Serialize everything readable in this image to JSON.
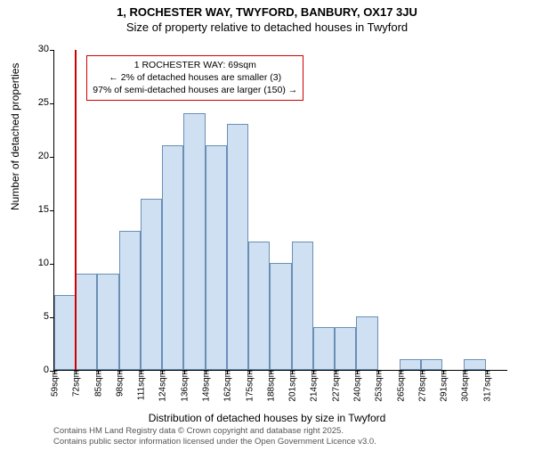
{
  "title_line1": "1, ROCHESTER WAY, TWYFORD, BANBURY, OX17 3JU",
  "title_line2": "Size of property relative to detached houses in Twyford",
  "ylabel": "Number of detached properties",
  "xlabel": "Distribution of detached houses by size in Twyford",
  "chart": {
    "type": "histogram",
    "ylim": [
      0,
      30
    ],
    "ytick_step": 5,
    "background_color": "#ffffff",
    "bar_fill": "#cfe0f3",
    "bar_border": "#6a8fb5",
    "ref_line_color": "#d00000",
    "info_border_color": "#d00000",
    "categories": [
      "59sqm",
      "72sqm",
      "85sqm",
      "98sqm",
      "111sqm",
      "124sqm",
      "136sqm",
      "149sqm",
      "162sqm",
      "175sqm",
      "188sqm",
      "201sqm",
      "214sqm",
      "227sqm",
      "240sqm",
      "253sqm",
      "265sqm",
      "278sqm",
      "291sqm",
      "304sqm",
      "317sqm"
    ],
    "values": [
      7,
      9,
      9,
      13,
      16,
      21,
      24,
      21,
      23,
      12,
      10,
      12,
      4,
      4,
      5,
      0,
      1,
      1,
      0,
      1,
      0
    ],
    "ref_line_category_index": 1,
    "label_fontsize": 12,
    "tick_fontsize": 10
  },
  "info_box": {
    "line1": "1 ROCHESTER WAY: 69sqm",
    "line2": "← 2% of detached houses are smaller (3)",
    "line3": "97% of semi-detached houses are larger (150) →"
  },
  "footer": {
    "line1": "Contains HM Land Registry data © Crown copyright and database right 2025.",
    "line2": "Contains public sector information licensed under the Open Government Licence v3.0."
  }
}
